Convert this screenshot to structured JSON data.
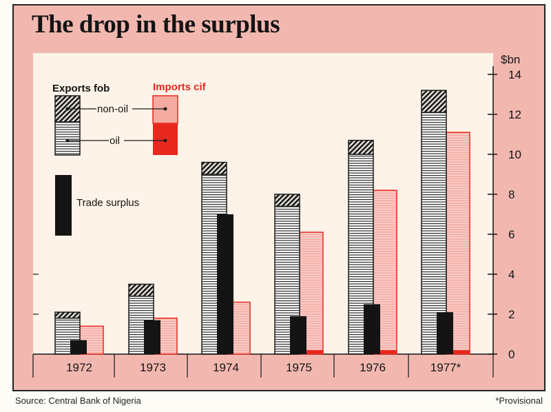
{
  "title": "The drop in the surplus",
  "source": "Source: Central Bank of Nigeria",
  "footnote": "*Provisional",
  "legend": {
    "exports_label": "Exports fob",
    "imports_label": "Imports cif",
    "non_oil_label": "non-oil",
    "oil_label": "oil",
    "surplus_label": "Trade surplus"
  },
  "colors": {
    "panel": "#fdf3e8",
    "frame": "#f2b8b0",
    "imports": "#e8281e",
    "imports_fill": "#f5b2aa",
    "dark": "#141414"
  },
  "chart_data": {
    "type": "bar",
    "unit_label": "$bn",
    "ylim": [
      0,
      14
    ],
    "yticks": [
      "0",
      "2",
      "4",
      "6",
      "8",
      "10",
      "12",
      "14"
    ],
    "categories": [
      "1972",
      "1973",
      "1974",
      "1975",
      "1976",
      "1977*"
    ],
    "series": [
      {
        "name": "oil",
        "values": [
          1.8,
          2.9,
          9.0,
          7.4,
          10.0,
          12.1
        ]
      },
      {
        "name": "non-oil",
        "values": [
          0.3,
          0.6,
          0.6,
          0.6,
          0.7,
          1.1
        ]
      },
      {
        "name": "Imports cif",
        "values": [
          1.4,
          1.8,
          2.6,
          6.1,
          8.2,
          11.1
        ]
      },
      {
        "name": "oil",
        "values": [
          0.0,
          0.0,
          0.0,
          0.2,
          0.2,
          0.2
        ]
      },
      {
        "name": "Trade surplus",
        "values": [
          0.7,
          1.7,
          7.0,
          1.9,
          2.5,
          2.1
        ]
      }
    ]
  }
}
